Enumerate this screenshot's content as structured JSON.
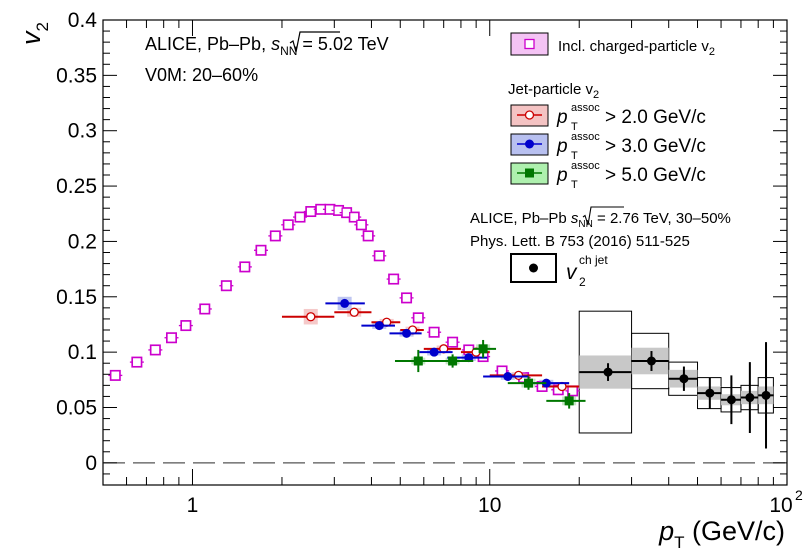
{
  "chart_data": {
    "type": "scatter",
    "xscale": "log",
    "xlim": [
      0.5,
      100
    ],
    "ylim": [
      -0.02,
      0.4
    ],
    "y_tick_labels": [
      "0",
      "0.05",
      "0.1",
      "0.15",
      "0.2",
      "0.25",
      "0.3",
      "0.35",
      "0.4"
    ],
    "y_ticks": [
      0,
      0.05,
      0.1,
      0.15,
      0.2,
      0.25,
      0.3,
      0.35,
      0.4
    ],
    "x_tick_labels": [
      {
        "value": 1,
        "base": "1",
        "exp": ""
      },
      {
        "value": 10,
        "base": "10",
        "exp": ""
      },
      {
        "value": 100,
        "base": "10",
        "exp": "2"
      }
    ],
    "xlabel": {
      "main": "p",
      "sub": "T",
      "unit": "(GeV/c)"
    },
    "ylabel": {
      "main": "v",
      "sub": "2"
    },
    "annotations": {
      "line1_a": "ALICE, Pb–Pb, ",
      "line1_sqrt": "s",
      "line1_sub": "NN",
      "line1_b": " = 5.02 TeV",
      "line2": "V0M: 20–60%",
      "ref_line1_a": "ALICE, Pb–Pb ",
      "ref_line1_sqrt": "s",
      "ref_line1_sub": "NN",
      "ref_line1_b": " = 2.76 TeV, 30–50%",
      "ref_line2": "Phys. Lett. B 753 (2016) 511-525"
    },
    "legend": {
      "incl_label": "Incl. charged-particle v",
      "incl_sub": "2",
      "jet_header": "Jet-particle v",
      "jet_header_sub": "2",
      "jet_entries": [
        {
          "p": "p",
          "sup": "assoc",
          "sub": "T",
          "rest": " > 2.0 GeV/c"
        },
        {
          "p": "p",
          "sup": "assoc",
          "sub": "T",
          "rest": " > 3.0 GeV/c"
        },
        {
          "p": "p",
          "sup": "assoc",
          "sub": "T",
          "rest": " > 5.0 GeV/c"
        }
      ],
      "ref_entry": {
        "main": "v",
        "sup": "ch jet",
        "sub": "2"
      }
    },
    "colors": {
      "incl": "#cc00cc",
      "jet2": "#cc0000",
      "jet3": "#0000cc",
      "jet5": "#007700",
      "ref": "#000000",
      "ref_sys": "#c8c8c8",
      "jet2_sys": "#f4c3c3",
      "jet3_sys": "#b8c0f0"
    },
    "series": [
      {
        "name": "Incl. charged-particle v2",
        "marker": "open-square",
        "x": [
          0.55,
          0.65,
          0.75,
          0.85,
          0.95,
          1.1,
          1.3,
          1.5,
          1.7,
          1.9,
          2.1,
          2.3,
          2.5,
          2.7,
          2.9,
          3.1,
          3.3,
          3.5,
          3.7,
          3.9,
          4.25,
          4.75,
          5.25,
          5.75,
          6.5,
          7.5,
          8.5,
          9.5,
          11,
          13,
          15,
          17,
          19
        ],
        "y": [
          0.079,
          0.091,
          0.102,
          0.113,
          0.124,
          0.139,
          0.16,
          0.177,
          0.192,
          0.205,
          0.215,
          0.222,
          0.227,
          0.229,
          0.229,
          0.228,
          0.226,
          0.222,
          0.215,
          0.205,
          0.187,
          0.166,
          0.149,
          0.131,
          0.118,
          0.109,
          0.102,
          0.096,
          0.083,
          0.077,
          0.069,
          0.066,
          0.065
        ]
      },
      {
        "name": "Jet-particle v2, pT assoc > 2.0 GeV/c",
        "marker": "open-circle",
        "x": [
          2.5,
          3.5,
          4.5,
          5.5,
          7.0,
          9.0,
          12.5,
          17.5
        ],
        "y": [
          0.132,
          0.136,
          0.127,
          0.12,
          0.103,
          0.1,
          0.079,
          0.069
        ],
        "xerr_lo": [
          2.0,
          3.0,
          4.0,
          5.0,
          6.0,
          8.0,
          10.0,
          15.0
        ],
        "xerr_hi": [
          3.0,
          4.0,
          5.0,
          6.0,
          8.0,
          10.0,
          15.0,
          20.0
        ],
        "sys": [
          0.007,
          0.004,
          0.003,
          0.003,
          0.003,
          0.003,
          0.003,
          0.004
        ]
      },
      {
        "name": "Jet-particle v2, pT assoc > 3.0 GeV/c",
        "marker": "filled-circle",
        "x": [
          3.25,
          4.25,
          5.25,
          6.5,
          8.5,
          11.5,
          15.5
        ],
        "y": [
          0.144,
          0.124,
          0.117,
          0.1,
          0.095,
          0.078,
          0.072
        ],
        "xerr_lo": [
          2.8,
          3.7,
          4.6,
          5.8,
          7.2,
          9.5,
          13.0
        ],
        "xerr_hi": [
          3.8,
          4.8,
          5.9,
          7.5,
          9.8,
          13.5,
          18.5
        ],
        "sys": [
          0.006,
          0.003,
          0.003,
          0.003,
          0.003,
          0.003,
          0.003
        ]
      },
      {
        "name": "Jet-particle v2, pT assoc > 5.0 GeV/c",
        "marker": "filled-square",
        "x": [
          5.75,
          7.5,
          9.5,
          13.5,
          18.5
        ],
        "y": [
          0.092,
          0.092,
          0.103,
          0.072,
          0.056
        ],
        "xerr_lo": [
          4.8,
          6.2,
          8.8,
          11.5,
          15.5
        ],
        "xerr_hi": [
          6.8,
          8.8,
          10.5,
          15.5,
          21.0
        ],
        "yerr": [
          0.01,
          0.006,
          0.008,
          0.006,
          0.007
        ],
        "sys": [
          0.003,
          0.003,
          0.004,
          0.004,
          0.004
        ]
      },
      {
        "name": "ALICE Pb–Pb 2.76 TeV 30–50% v2 ch jet",
        "marker": "filled-circle",
        "x": [
          25,
          35,
          45,
          55,
          65,
          75,
          85
        ],
        "y": [
          0.082,
          0.092,
          0.076,
          0.063,
          0.057,
          0.059,
          0.061
        ],
        "xerr_lo": [
          20,
          30,
          40,
          50,
          60,
          70,
          80
        ],
        "xerr_hi": [
          30,
          40,
          50,
          60,
          70,
          80,
          90
        ],
        "yerr": [
          0.008,
          0.009,
          0.011,
          0.014,
          0.022,
          0.032,
          0.048
        ],
        "sys_shaded": [
          0.015,
          0.012,
          0.008,
          0.006,
          0.005,
          0.006,
          0.008
        ],
        "sys_box": [
          0.055,
          0.025,
          0.015,
          0.014,
          0.011,
          0.011,
          0.016
        ]
      }
    ]
  }
}
